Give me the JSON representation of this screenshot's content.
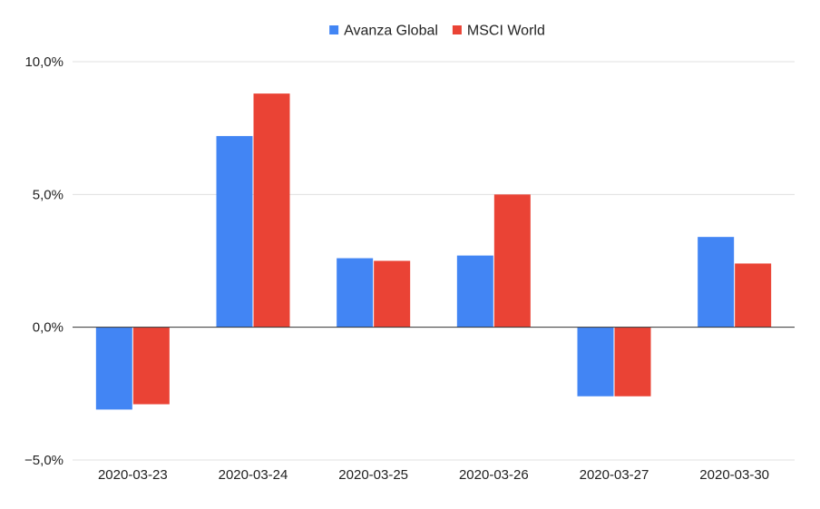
{
  "chart_data": {
    "type": "bar",
    "categories": [
      "2020-03-23",
      "2020-03-24",
      "2020-03-25",
      "2020-03-26",
      "2020-03-27",
      "2020-03-30"
    ],
    "series": [
      {
        "name": "Avanza Global",
        "color": "#4285f4",
        "values": [
          -3.1,
          7.2,
          2.6,
          2.7,
          -2.6,
          3.4
        ]
      },
      {
        "name": "MSCI World",
        "color": "#ea4335",
        "values": [
          -2.9,
          8.8,
          2.5,
          5.0,
          -2.6,
          2.4
        ]
      }
    ],
    "y_ticks": [
      -5,
      0,
      5,
      10
    ],
    "y_tick_labels": [
      "−5,0%",
      "0,0%",
      "5,0%",
      "10,0%"
    ],
    "ylim": [
      -5,
      10
    ],
    "y_unit": "%",
    "legend_position": "top-center",
    "grid": true,
    "colors": {
      "gridline": "#e0e0e0",
      "zero_axis": "#333333",
      "text": "#222222"
    }
  }
}
